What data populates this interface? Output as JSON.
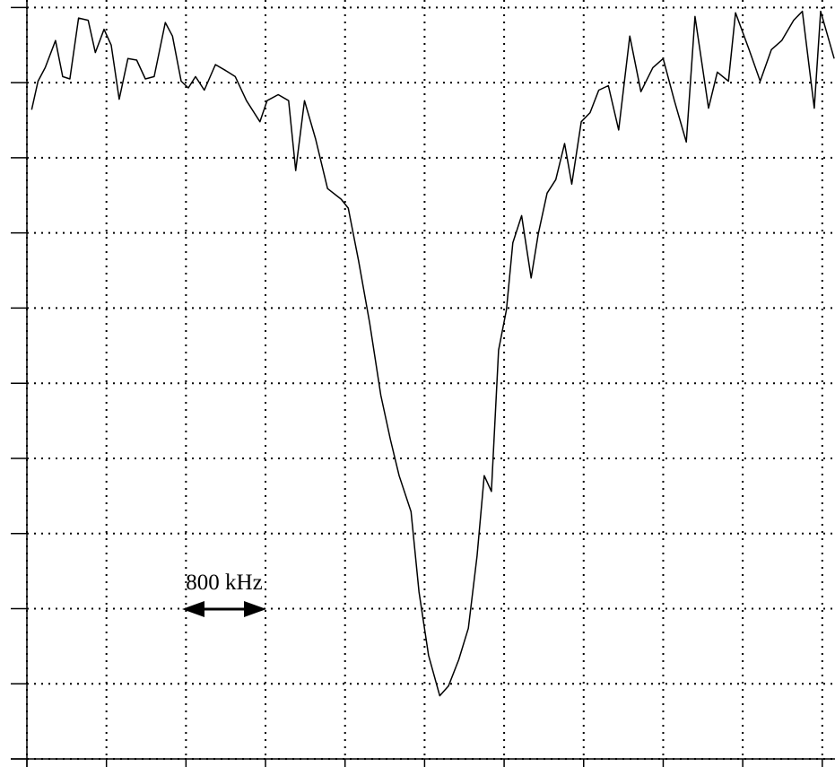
{
  "chart_data": {
    "type": "line",
    "annotation": "800 kHz",
    "x": [
      0.06,
      0.14,
      0.23,
      0.36,
      0.45,
      0.54,
      0.65,
      0.77,
      0.86,
      0.97,
      1.06,
      1.16,
      1.27,
      1.38,
      1.49,
      1.6,
      1.74,
      1.83,
      1.94,
      2.03,
      2.12,
      2.23,
      2.37,
      2.5,
      2.62,
      2.76,
      2.93,
      3.02,
      3.16,
      3.29,
      3.38,
      3.49,
      3.63,
      3.78,
      3.95,
      4.04,
      4.17,
      4.31,
      4.45,
      4.57,
      4.68,
      4.83,
      4.93,
      5.05,
      5.19,
      5.3,
      5.43,
      5.55,
      5.66,
      5.75,
      5.84,
      5.93,
      6.03,
      6.11,
      6.22,
      6.34,
      6.43,
      6.54,
      6.65,
      6.76,
      6.85,
      6.97,
      7.08,
      7.19,
      7.31,
      7.44,
      7.58,
      7.72,
      7.87,
      8.0,
      8.14,
      8.29,
      8.4,
      8.57,
      8.68,
      8.82,
      8.91,
      9.08,
      9.22,
      9.36,
      9.49,
      9.64,
      9.75,
      9.9,
      9.98,
      10.15
    ],
    "values": [
      8.64,
      9.02,
      9.2,
      9.56,
      9.08,
      9.05,
      9.86,
      9.83,
      9.4,
      9.71,
      9.5,
      8.78,
      9.32,
      9.3,
      9.05,
      9.08,
      9.8,
      9.62,
      9.02,
      8.93,
      9.08,
      8.9,
      9.24,
      9.16,
      9.08,
      8.76,
      8.48,
      8.76,
      8.84,
      8.76,
      7.83,
      8.76,
      8.25,
      7.59,
      7.45,
      7.33,
      6.63,
      5.8,
      4.84,
      4.25,
      3.77,
      3.29,
      2.22,
      1.38,
      0.84,
      0.97,
      1.32,
      1.74,
      2.7,
      3.77,
      3.56,
      5.44,
      5.98,
      6.87,
      7.23,
      6.4,
      6.99,
      7.53,
      7.71,
      8.19,
      7.65,
      8.48,
      8.6,
      8.9,
      8.96,
      8.37,
      9.62,
      8.88,
      9.2,
      9.32,
      8.76,
      8.21,
      9.88,
      8.66,
      9.14,
      9.02,
      9.93,
      9.44,
      9.02,
      9.44,
      9.56,
      9.83,
      9.95,
      8.66,
      9.95,
      9.32
    ],
    "color": "#000000",
    "xlim": [
      0,
      10.16
    ],
    "xticks": [
      0,
      1,
      2,
      3,
      4,
      5,
      6,
      7,
      8,
      9,
      10
    ],
    "ylim": [
      0,
      10.1
    ],
    "yticks": [
      0,
      1,
      2,
      3,
      4,
      5,
      6,
      7,
      8,
      9,
      10
    ],
    "grid": true
  }
}
